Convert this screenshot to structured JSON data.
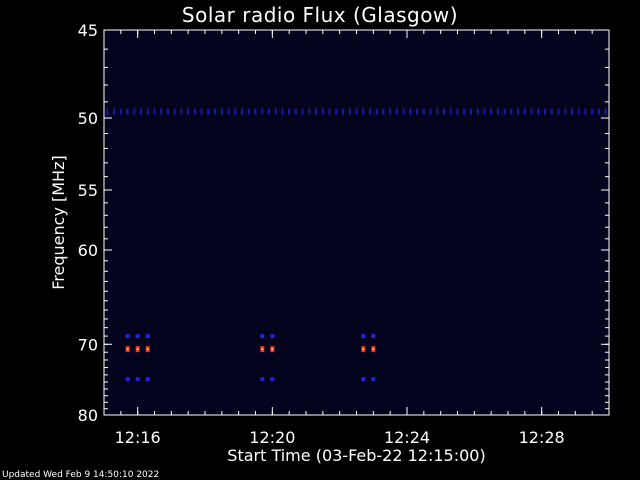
{
  "chart_data": {
    "type": "heatmap",
    "title": "Solar radio Flux (Glasgow)",
    "xlabel": "Start Time (03-Feb-22 12:15:00)",
    "ylabel": "Frequency [MHz]",
    "x_ticks": [
      "12:16",
      "12:20",
      "12:24",
      "12:28"
    ],
    "x_tick_minutes": [
      16,
      20,
      24,
      28
    ],
    "x_range_minutes": [
      15.0,
      30.0
    ],
    "y_ticks": [
      45,
      50,
      55,
      60,
      70,
      80
    ],
    "y_range_mhz": [
      45,
      80
    ],
    "y_scale": "reciprocal",
    "colormap": [
      "#000010",
      "#00008b",
      "#ff0000",
      "#ffd0a0"
    ],
    "features": {
      "band_50mhz_interference": {
        "freq_mhz": 49.6,
        "time_range_minutes": [
          15.1,
          30.0
        ]
      },
      "bursts": [
        {
          "t": 16.0,
          "freq_mhz": [
            69.0,
            70.6,
            74.6
          ],
          "peak": "red"
        },
        {
          "t": 20.0,
          "freq_mhz": [
            69.0,
            70.6,
            74.6
          ],
          "peak": "red"
        },
        {
          "t": 23.0,
          "freq_mhz": [
            69.0,
            70.6,
            74.6
          ],
          "peak": "red"
        }
      ]
    }
  },
  "footer": "Updated Wed Feb  9 14:50:10 2022"
}
